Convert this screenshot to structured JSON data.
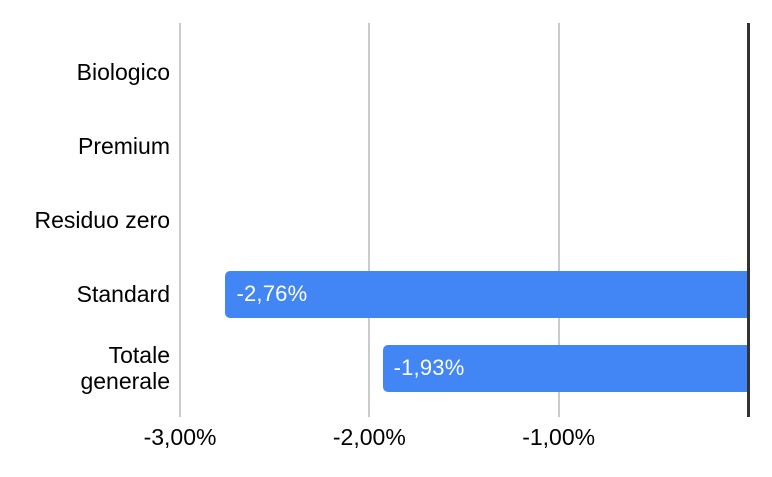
{
  "chart_data": {
    "type": "bar",
    "orientation": "horizontal",
    "title": "",
    "categories": [
      "Biologico",
      "Premium",
      "Residuo zero",
      "Standard",
      "Totale generale"
    ],
    "series": [
      {
        "name": "",
        "values": [
          0,
          0,
          0,
          -2.76,
          -1.93
        ]
      }
    ],
    "bar_labels": [
      "",
      "",
      "",
      "-2,76%",
      "-1,93%"
    ],
    "x_axis": {
      "min": -3,
      "max": 0,
      "ticks": [
        {
          "value": -3,
          "label": "-3,00%"
        },
        {
          "value": -2,
          "label": "-2,00%"
        },
        {
          "value": -1,
          "label": "-1,00%"
        }
      ]
    },
    "grid": true,
    "legend": "none",
    "colors": {
      "bar": "#4285f4",
      "bar_label_text": "#ffffff",
      "gridline": "#cccccc",
      "axis_line": "#333333",
      "text": "#000000",
      "background": "#ffffff"
    }
  }
}
